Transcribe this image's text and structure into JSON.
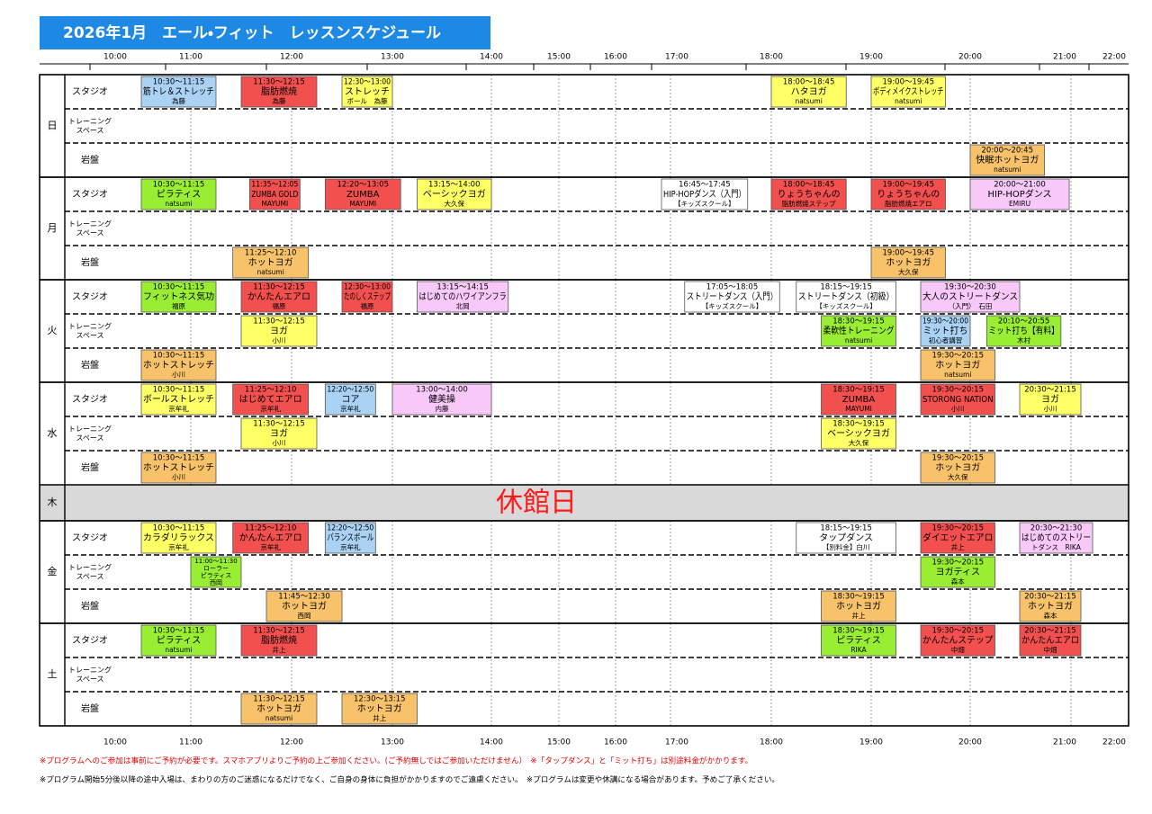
{
  "title": "2026年1月　エール・フィット　レッスンスケジュール",
  "times": [
    "10:00",
    "11:00",
    "12:00",
    "13:00",
    "14:00",
    "15:00",
    "16:00",
    "17:00",
    "18:00",
    "19:00",
    "20:00",
    "21:00",
    "22:00"
  ],
  "rooms": [
    [
      "スタジオ"
    ],
    [
      "トレーニング",
      "スペース"
    ],
    [
      "岩盤"
    ]
  ],
  "days": [
    {
      "day": "日",
      "rooms": [
        [
          {
            "color": "#a9d2f5",
            "lines": [
              "10:30～11:15",
              "筋トレ＆ストレッチ",
              "為藤"
            ]
          },
          {
            "color": "#f24f4f",
            "lines": [
              "11:30～12:15",
              "脂肪燃焼",
              "為藤"
            ]
          },
          {
            "color": "#ffff66",
            "lines": [
              "12:30～13:00",
              "ストレッチ",
              "ボール　為藤"
            ]
          },
          {
            "color": "#ffff66",
            "lines": [
              "18:00～18:45",
              "ハタヨガ",
              "natsumi"
            ]
          },
          {
            "color": "#ffff66",
            "lines": [
              "19:00～19:45",
              "ボディメイクストレッチ",
              "natsumi"
            ]
          }
        ],
        [],
        [
          {
            "color": "#f8c26a",
            "lines": [
              "20:00～20:45",
              "快眠ホットヨガ",
              "natsumi"
            ]
          }
        ]
      ]
    },
    {
      "day": "月",
      "rooms": [
        [
          {
            "color": "#99ee33",
            "lines": [
              "10:30～11:15",
              "ピラティス",
              "natsumi"
            ]
          },
          {
            "color": "#f24f4f",
            "lines": [
              "11:35～12:05",
              "ZUMBA GOLD",
              "MAYUMI"
            ]
          },
          {
            "color": "#f24f4f",
            "lines": [
              "12:20～13:05",
              "ZUMBA",
              "MAYUMI"
            ]
          },
          {
            "color": "#ffff66",
            "lines": [
              "13:15～14:00",
              "ベーシックヨガ",
              "大久保"
            ]
          },
          {
            "color": "#ffffff",
            "lines": [
              "16:45～17:45",
              "HIP-HOPダンス（入門）",
              "【キッズスクール】"
            ]
          },
          {
            "color": "#f24f4f",
            "lines": [
              "18:00～18:45",
              "りょうちゃんの",
              "脂肪燃焼ステップ"
            ]
          },
          {
            "color": "#f24f4f",
            "lines": [
              "19:00～19:45",
              "りょうちゃんの",
              "脂肪燃焼エアロ"
            ]
          },
          {
            "color": "#f8c8f8",
            "lines": [
              "20:00～21:00",
              "HIP-HOPダンス",
              "EMIRU"
            ]
          }
        ],
        [],
        [
          {
            "color": "#f8c26a",
            "lines": [
              "11:25～12:10",
              "ホットヨガ",
              "natsumi"
            ]
          },
          {
            "color": "#f8c26a",
            "lines": [
              "19:00～19:45",
              "ホットヨガ",
              "大久保"
            ]
          }
        ]
      ]
    },
    {
      "day": "火",
      "rooms": [
        [
          {
            "color": "#99ee33",
            "lines": [
              "10:30～11:15",
              "フィットネス気功",
              "福原"
            ]
          },
          {
            "color": "#f24f4f",
            "lines": [
              "11:30～12:15",
              "かんたんエアロ",
              "福原"
            ]
          },
          {
            "color": "#f24f4f",
            "lines": [
              "12:30～13:00",
              "たのしくステップ",
              "福原"
            ]
          },
          {
            "color": "#f8c8f8",
            "lines": [
              "13:15～14:15",
              "はじめてのハワイアンフラ",
              "北岡"
            ]
          },
          {
            "color": "#ffffff",
            "lines": [
              "17:05～18:05",
              "ストリートダンス（入門）",
              "【キッズスクール】"
            ]
          },
          {
            "color": "#ffffff",
            "lines": [
              "18:15～19:15",
              "ストリートダンス（初級）",
              "【キッズスクール】"
            ]
          },
          {
            "color": "#f8c8f8",
            "lines": [
              "19:30～20:30",
              "大人のストリートダンス",
              "（入門）　石田"
            ]
          }
        ],
        [
          {
            "color": "#ffff66",
            "lines": [
              "11:30～12:15",
              "ヨガ",
              "小川"
            ]
          },
          {
            "color": "#99ee33",
            "lines": [
              "18:30～19:15",
              "柔軟性トレーニング",
              "natsumi"
            ]
          },
          {
            "color": "#a9d2f5",
            "lines": [
              "19:30～20:00",
              "ミット打ち",
              "初心者講習"
            ]
          },
          {
            "color": "#99ee33",
            "lines": [
              "20:10～20:55",
              "ミット打ち【有料】",
              "木村"
            ]
          }
        ],
        [
          {
            "color": "#f8c26a",
            "lines": [
              "10:30～11:15",
              "ホットストレッチ",
              "小川"
            ]
          },
          {
            "color": "#f8c26a",
            "lines": [
              "19:30～20:15",
              "ホットヨガ",
              "natsumi"
            ]
          }
        ]
      ]
    },
    {
      "day": "水",
      "rooms": [
        [
          {
            "color": "#ffff66",
            "lines": [
              "10:30～11:15",
              "ボールストレッチ",
              "京牟礼"
            ]
          },
          {
            "color": "#f24f4f",
            "lines": [
              "11:25～12:10",
              "はじめてエアロ",
              "京牟礼"
            ]
          },
          {
            "color": "#a9d2f5",
            "lines": [
              "12:20～12:50",
              "コア",
              "京牟礼"
            ]
          },
          {
            "color": "#f8c8f8",
            "lines": [
              "13:00～14:00",
              "健美操",
              "内藤"
            ]
          },
          {
            "color": "#f24f4f",
            "lines": [
              "18:30～19:15",
              "ZUMBA",
              "MAYUMI"
            ]
          },
          {
            "color": "#f24f4f",
            "lines": [
              "19:30～20:15",
              "STORONG NATION",
              "小川"
            ]
          },
          {
            "color": "#ffff66",
            "lines": [
              "20:30～21:15",
              "ヨガ",
              "小川"
            ]
          }
        ],
        [
          {
            "color": "#ffff66",
            "lines": [
              "11:30～12:15",
              "ヨガ",
              "小川"
            ]
          },
          {
            "color": "#ffff66",
            "lines": [
              "18:30～19:15",
              "ベーシックヨガ",
              "大久保"
            ]
          }
        ],
        [
          {
            "color": "#f8c26a",
            "lines": [
              "10:30～11:15",
              "ホットストレッチ",
              "小川"
            ]
          },
          {
            "color": "#f8c26a",
            "lines": [
              "19:30～20:15",
              "ホットヨガ",
              "大久保"
            ]
          }
        ]
      ]
    },
    {
      "day": "木",
      "closed": "休館日"
    },
    {
      "day": "金",
      "rooms": [
        [
          {
            "color": "#ffff66",
            "lines": [
              "10:30～11:15",
              "カラダリラックス",
              "京牟礼"
            ]
          },
          {
            "color": "#f24f4f",
            "lines": [
              "11:25～12:10",
              "かんたんエアロ",
              "京牟礼"
            ]
          },
          {
            "color": "#a9d2f5",
            "lines": [
              "12:20～12:50",
              "バランスボール",
              "京牟礼"
            ]
          },
          {
            "color": "#ffffff",
            "lines": [
              "18:15～19:15",
              "タップダンス",
              "【別料金】白川"
            ]
          },
          {
            "color": "#f24f4f",
            "lines": [
              "19:30～20:15",
              "ダイエットエアロ",
              "井上"
            ]
          },
          {
            "color": "#f8c8f8",
            "lines": [
              "20:30～21:30",
              "はじめてのストリー",
              "トダンス　RIKA"
            ]
          }
        ],
        [
          {
            "color": "#99ee33",
            "lines": [
              "11:00～11:30",
              "ローラー",
              "ピラティス",
              "西岡"
            ]
          },
          {
            "color": "#99ee33",
            "lines": [
              "19:30～20:15",
              "ヨガティス",
              "森本"
            ]
          }
        ],
        [
          {
            "color": "#f8c26a",
            "lines": [
              "11:45～12:30",
              "ホットヨガ",
              "西岡"
            ]
          },
          {
            "color": "#f8c26a",
            "lines": [
              "18:30～19:15",
              "ホットヨガ",
              "井上"
            ]
          },
          {
            "color": "#f8c26a",
            "lines": [
              "20:30～21:15",
              "ホットヨガ",
              "森本"
            ]
          }
        ]
      ]
    },
    {
      "day": "土",
      "rooms": [
        [
          {
            "color": "#99ee33",
            "lines": [
              "10:30～11:15",
              "ピラティス",
              "natsumi"
            ]
          },
          {
            "color": "#f24f4f",
            "lines": [
              "11:30～12:15",
              "脂肪燃焼",
              "井上"
            ]
          },
          {
            "color": "#99ee33",
            "lines": [
              "18:30～19:15",
              "ピラティス",
              "RIKA"
            ]
          },
          {
            "color": "#f24f4f",
            "lines": [
              "19:30～20:15",
              "かんたんステップ",
              "中畑"
            ]
          },
          {
            "color": "#f24f4f",
            "lines": [
              "20:30～21:15",
              "かんたんエアロ",
              "中畑"
            ]
          }
        ],
        [],
        [
          {
            "color": "#f8c26a",
            "lines": [
              "11:30～12:15",
              "ホットヨガ",
              "natsumi"
            ]
          },
          {
            "color": "#f8c26a",
            "lines": [
              "12:30～13:15",
              "ホットヨガ",
              "井上"
            ]
          }
        ]
      ]
    }
  ],
  "notes": [
    "※プログラムへのご参加は事前にご予約が必要です。スマホアプリよりご予約の上ご参加ください。(ご予約無しではご参加いただけません）　※「タップダンス」と「ミット打ち」は別途料金がかかります。",
    "※プログラム開始5分後以降の途中入場は、まわりの方のご迷惑になるだけでなく、ご自身の身体に負担がかかりますのでご遠慮ください。　※プログラムは変更や休講になる場合があります。予めご了承ください。"
  ]
}
